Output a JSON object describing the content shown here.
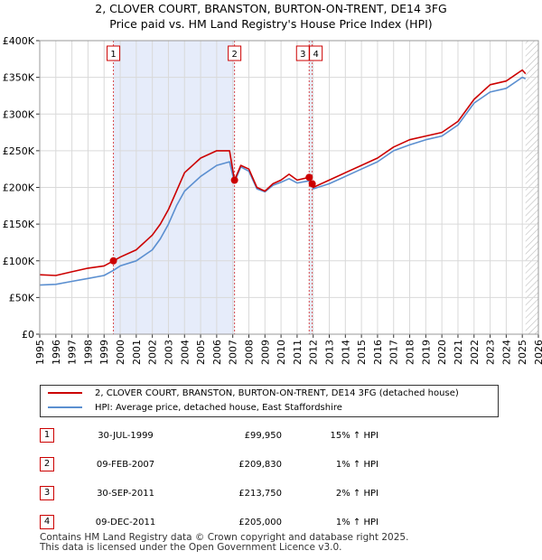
{
  "title": {
    "line1": "2, CLOVER COURT, BRANSTON, BURTON-ON-TRENT, DE14 3FG",
    "line2": "Price paid vs. HM Land Registry's House Price Index (HPI)"
  },
  "colors": {
    "property": "#cc0000",
    "hpi": "#5b8fd0",
    "shade": "#e6ecfa",
    "grid": "#d9d9d9"
  },
  "legend": {
    "property_label": "2, CLOVER COURT, BRANSTON, BURTON-ON-TRENT, DE14 3FG (detached house)",
    "hpi_label": "HPI: Average price, detached house, East Staffordshire"
  },
  "transactions": [
    {
      "id": "1",
      "date": "30-JUL-1999",
      "price": "£99,950",
      "hpi_change": "15% ↑ HPI"
    },
    {
      "id": "2",
      "date": "09-FEB-2007",
      "price": "£209,830",
      "hpi_change": "1% ↑ HPI"
    },
    {
      "id": "3",
      "date": "30-SEP-2011",
      "price": "£213,750",
      "hpi_change": "2% ↑ HPI"
    },
    {
      "id": "4",
      "date": "09-DEC-2011",
      "price": "£205,000",
      "hpi_change": "1% ↑ HPI"
    }
  ],
  "footer": {
    "line1": "Contains HM Land Registry data © Crown copyright and database right 2025.",
    "line2": "This data is licensed under the Open Government Licence v3.0."
  },
  "chart_data": {
    "type": "line",
    "title": "Price paid vs. HM Land Registry's House Price Index (HPI)",
    "xlabel": "",
    "ylabel": "",
    "xlim": [
      1995,
      2026
    ],
    "ylim": [
      0,
      400000
    ],
    "yticks": [
      0,
      50000,
      100000,
      150000,
      200000,
      250000,
      300000,
      350000,
      400000
    ],
    "ytick_labels": [
      "£0",
      "£50K",
      "£100K",
      "£150K",
      "£200K",
      "£250K",
      "£300K",
      "£350K",
      "£400K"
    ],
    "xticks": [
      1995,
      1996,
      1997,
      1998,
      1999,
      2000,
      2001,
      2002,
      2003,
      2004,
      2005,
      2006,
      2007,
      2008,
      2009,
      2010,
      2011,
      2012,
      2013,
      2014,
      2015,
      2016,
      2017,
      2018,
      2019,
      2020,
      2021,
      2022,
      2023,
      2024,
      2025,
      2026
    ],
    "grid": true,
    "shaded_ranges": [
      [
        1999.58,
        2007.11
      ],
      [
        2011.75,
        2011.94
      ]
    ],
    "future_hatch_from": 2025.2,
    "series": [
      {
        "name": "2, CLOVER COURT, BRANSTON, BURTON-ON-TRENT, DE14 3FG (detached house)",
        "x": [
          1995,
          1996,
          1997,
          1998,
          1999,
          1999.58,
          2000,
          2001,
          2002,
          2002.5,
          2003,
          2003.5,
          2004,
          2005,
          2006,
          2006.8,
          2007.11,
          2007.5,
          2008,
          2008.5,
          2009,
          2009.5,
          2010,
          2010.5,
          2011,
          2011.75,
          2011.94,
          2012,
          2013,
          2014,
          2015,
          2016,
          2017,
          2018,
          2019,
          2020,
          2021,
          2022,
          2023,
          2024,
          2025,
          2025.2
        ],
        "y": [
          81000,
          80000,
          85000,
          90000,
          93000,
          99950,
          105000,
          115000,
          135000,
          150000,
          170000,
          195000,
          220000,
          240000,
          250000,
          250000,
          209830,
          230000,
          225000,
          200000,
          195000,
          205000,
          210000,
          218000,
          210000,
          213750,
          205000,
          200000,
          210000,
          220000,
          230000,
          240000,
          255000,
          265000,
          270000,
          275000,
          290000,
          320000,
          340000,
          345000,
          360000,
          355000
        ]
      },
      {
        "name": "HPI: Average price, detached house, East Staffordshire",
        "x": [
          1995,
          1996,
          1997,
          1998,
          1999,
          1999.58,
          2000,
          2001,
          2002,
          2002.5,
          2003,
          2003.5,
          2004,
          2005,
          2006,
          2006.8,
          2007.11,
          2007.5,
          2008,
          2008.5,
          2009,
          2009.5,
          2010,
          2010.5,
          2011,
          2011.75,
          2011.94,
          2012,
          2013,
          2014,
          2015,
          2016,
          2017,
          2018,
          2019,
          2020,
          2021,
          2022,
          2023,
          2024,
          2025,
          2025.2
        ],
        "y": [
          67000,
          68000,
          72000,
          76000,
          80000,
          87000,
          93000,
          100000,
          115000,
          130000,
          150000,
          175000,
          195000,
          215000,
          230000,
          235000,
          207000,
          228000,
          222000,
          198000,
          194000,
          203000,
          207000,
          212000,
          206000,
          209000,
          203000,
          198000,
          205000,
          215000,
          225000,
          235000,
          250000,
          258000,
          265000,
          270000,
          285000,
          315000,
          330000,
          335000,
          350000,
          348000
        ]
      }
    ],
    "markers": [
      {
        "label": "1",
        "x": 1999.58,
        "y": 99950
      },
      {
        "label": "2",
        "x": 2007.11,
        "y": 209830
      },
      {
        "label": "3",
        "x": 2011.75,
        "y": 213750
      },
      {
        "label": "4",
        "x": 2011.94,
        "y": 205000
      }
    ]
  }
}
